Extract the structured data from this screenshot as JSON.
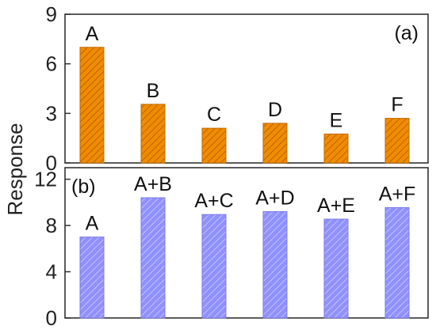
{
  "ylabel": "Response",
  "chart_data": [
    {
      "type": "bar",
      "panel_label": "(a)",
      "categories": [
        "A",
        "B",
        "C",
        "D",
        "E",
        "F"
      ],
      "values": [
        7.0,
        3.55,
        2.1,
        2.4,
        1.75,
        2.7
      ],
      "ylim": [
        0,
        9
      ],
      "yticks": [
        "0",
        "3",
        "6",
        "9"
      ],
      "ylabel": "Response",
      "grid": false,
      "color": "#f08c00",
      "hatch": true
    },
    {
      "type": "bar",
      "panel_label": "(b)",
      "categories": [
        "A",
        "A+B",
        "A+C",
        "A+D",
        "A+E",
        "A+F"
      ],
      "values": [
        7.0,
        10.4,
        8.95,
        9.2,
        8.55,
        9.55
      ],
      "ylim": [
        0,
        13
      ],
      "yticks": [
        "0",
        "4",
        "8",
        "12"
      ],
      "ylabel": "Response",
      "grid": false,
      "color": "#8c8cff",
      "hatch": true
    }
  ]
}
